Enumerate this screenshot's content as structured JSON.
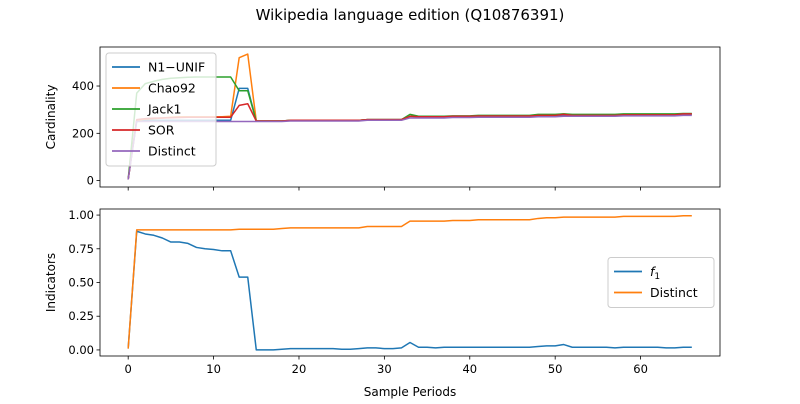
{
  "figure": {
    "title": "Wikipedia language edition (Q10876391)",
    "xlabel": "Sample Periods"
  },
  "chart_data": [
    {
      "type": "line",
      "ylabel": "Cardinality",
      "xlim": [
        -3.3,
        69.3
      ],
      "ylim": [
        -27,
        565
      ],
      "xticks": [
        0,
        10,
        20,
        30,
        40,
        50,
        60
      ],
      "yticks": [
        0,
        200,
        400
      ],
      "show_xtick_labels": false,
      "legend_placement": "upper-left",
      "grid": false,
      "series": [
        {
          "name": "N1−UNIF",
          "color": "#1f77b4",
          "x": [
            0,
            1,
            2,
            3,
            4,
            5,
            6,
            7,
            8,
            9,
            10,
            11,
            12,
            13,
            14,
            15,
            16,
            17,
            18,
            19,
            20,
            21,
            22,
            23,
            24,
            25,
            26,
            27,
            28,
            29,
            30,
            31,
            32,
            33,
            34,
            35,
            36,
            37,
            38,
            39,
            40,
            41,
            42,
            43,
            44,
            45,
            46,
            47,
            48,
            49,
            50,
            51,
            52,
            53,
            54,
            55,
            56,
            57,
            58,
            59,
            60,
            61,
            62,
            63,
            64,
            65,
            66
          ],
          "y": [
            5,
            255,
            255,
            255,
            255,
            255,
            255,
            255,
            255,
            255,
            255,
            255,
            255,
            390,
            390,
            252,
            252,
            252,
            252,
            255,
            255,
            255,
            255,
            255,
            255,
            255,
            255,
            255,
            258,
            258,
            258,
            258,
            258,
            272,
            270,
            270,
            270,
            270,
            272,
            272,
            272,
            273,
            273,
            273,
            273,
            273,
            273,
            273,
            275,
            275,
            275,
            277,
            277,
            277,
            277,
            277,
            277,
            277,
            278,
            278,
            278,
            278,
            278,
            278,
            278,
            280,
            280
          ]
        },
        {
          "name": "Chao92",
          "color": "#ff7f0e",
          "x": [
            0,
            1,
            2,
            3,
            4,
            5,
            6,
            7,
            8,
            9,
            10,
            11,
            12,
            13,
            14,
            15,
            16,
            17,
            18,
            19,
            20,
            21,
            22,
            23,
            24,
            25,
            26,
            27,
            28,
            29,
            30,
            31,
            32,
            33,
            34,
            35,
            36,
            37,
            38,
            39,
            40,
            41,
            42,
            43,
            44,
            45,
            46,
            47,
            48,
            49,
            50,
            51,
            52,
            53,
            54,
            55,
            56,
            57,
            58,
            59,
            60,
            61,
            62,
            63,
            64,
            65,
            66
          ],
          "y": [
            5,
            255,
            260,
            262,
            265,
            268,
            270,
            270,
            270,
            270,
            270,
            270,
            272,
            520,
            535,
            252,
            252,
            252,
            252,
            255,
            255,
            255,
            255,
            255,
            255,
            255,
            255,
            255,
            258,
            258,
            258,
            258,
            258,
            272,
            270,
            270,
            270,
            270,
            272,
            272,
            272,
            273,
            273,
            273,
            273,
            273,
            273,
            273,
            278,
            278,
            278,
            282,
            278,
            278,
            278,
            278,
            278,
            278,
            280,
            280,
            280,
            280,
            280,
            280,
            280,
            282,
            282
          ]
        },
        {
          "name": "Jack1",
          "color": "#2ca02c",
          "x": [
            0,
            1,
            2,
            3,
            4,
            5,
            6,
            7,
            8,
            9,
            10,
            11,
            12,
            13,
            14,
            15,
            16,
            17,
            18,
            19,
            20,
            21,
            22,
            23,
            24,
            25,
            26,
            27,
            28,
            29,
            30,
            31,
            32,
            33,
            34,
            35,
            36,
            37,
            38,
            39,
            40,
            41,
            42,
            43,
            44,
            45,
            46,
            47,
            48,
            49,
            50,
            51,
            52,
            53,
            54,
            55,
            56,
            57,
            58,
            59,
            60,
            61,
            62,
            63,
            64,
            65,
            66
          ],
          "y": [
            5,
            370,
            410,
            420,
            428,
            433,
            435,
            437,
            438,
            438,
            438,
            438,
            438,
            380,
            380,
            252,
            252,
            252,
            252,
            255,
            255,
            255,
            255,
            255,
            255,
            255,
            255,
            255,
            258,
            258,
            258,
            258,
            258,
            280,
            272,
            272,
            272,
            272,
            274,
            274,
            274,
            276,
            276,
            276,
            276,
            276,
            276,
            276,
            280,
            280,
            280,
            282,
            280,
            280,
            280,
            280,
            280,
            280,
            282,
            282,
            282,
            282,
            282,
            282,
            282,
            284,
            284
          ]
        },
        {
          "name": "SOR",
          "color": "#d62728",
          "x": [
            0,
            1,
            2,
            3,
            4,
            5,
            6,
            7,
            8,
            9,
            10,
            11,
            12,
            13,
            14,
            15,
            16,
            17,
            18,
            19,
            20,
            21,
            22,
            23,
            24,
            25,
            26,
            27,
            28,
            29,
            30,
            31,
            32,
            33,
            34,
            35,
            36,
            37,
            38,
            39,
            40,
            41,
            42,
            43,
            44,
            45,
            46,
            47,
            48,
            49,
            50,
            51,
            52,
            53,
            54,
            55,
            56,
            57,
            58,
            59,
            60,
            61,
            62,
            63,
            64,
            65,
            66
          ],
          "y": [
            5,
            258,
            262,
            264,
            265,
            266,
            267,
            268,
            268,
            268,
            268,
            268,
            268,
            318,
            325,
            252,
            252,
            252,
            252,
            255,
            255,
            255,
            255,
            255,
            255,
            255,
            255,
            255,
            258,
            258,
            258,
            258,
            258,
            272,
            270,
            270,
            270,
            270,
            272,
            272,
            272,
            273,
            273,
            273,
            273,
            273,
            273,
            273,
            276,
            276,
            276,
            280,
            276,
            276,
            276,
            276,
            276,
            276,
            278,
            278,
            278,
            278,
            278,
            278,
            278,
            282,
            282
          ]
        },
        {
          "name": "Distinct",
          "color": "#9467bd",
          "x": [
            0,
            1,
            2,
            3,
            4,
            5,
            6,
            7,
            8,
            9,
            10,
            11,
            12,
            13,
            14,
            15,
            16,
            17,
            18,
            19,
            20,
            21,
            22,
            23,
            24,
            25,
            26,
            27,
            28,
            29,
            30,
            31,
            32,
            33,
            34,
            35,
            36,
            37,
            38,
            39,
            40,
            41,
            42,
            43,
            44,
            45,
            46,
            47,
            48,
            49,
            50,
            51,
            52,
            53,
            54,
            55,
            56,
            57,
            58,
            59,
            60,
            61,
            62,
            63,
            64,
            65,
            66
          ],
          "y": [
            5,
            250,
            250,
            250,
            250,
            250,
            250,
            250,
            250,
            250,
            250,
            250,
            250,
            250,
            250,
            250,
            250,
            250,
            250,
            252,
            252,
            252,
            252,
            252,
            252,
            252,
            252,
            252,
            255,
            255,
            255,
            255,
            255,
            265,
            265,
            265,
            265,
            265,
            267,
            267,
            267,
            268,
            268,
            268,
            268,
            268,
            268,
            268,
            270,
            270,
            270,
            272,
            272,
            272,
            272,
            272,
            272,
            272,
            274,
            274,
            274,
            274,
            274,
            274,
            274,
            276,
            276
          ]
        }
      ]
    },
    {
      "type": "line",
      "ylabel": "Indicators",
      "xlim": [
        -3.3,
        69.3
      ],
      "ylim": [
        -0.045,
        1.045
      ],
      "xticks": [
        0,
        10,
        20,
        30,
        40,
        50,
        60
      ],
      "yticks": [
        0.0,
        0.25,
        0.5,
        0.75,
        1.0
      ],
      "ytick_labels": [
        "0.00",
        "0.25",
        "0.50",
        "0.75",
        "1.00"
      ],
      "show_xtick_labels": true,
      "legend_placement": "center-right",
      "grid": false,
      "series": [
        {
          "name": "f1",
          "label_main": "f",
          "label_sub": "1",
          "color": "#1f77b4",
          "x": [
            0,
            1,
            2,
            3,
            4,
            5,
            6,
            7,
            8,
            9,
            10,
            11,
            12,
            13,
            14,
            15,
            16,
            17,
            18,
            19,
            20,
            21,
            22,
            23,
            24,
            25,
            26,
            27,
            28,
            29,
            30,
            31,
            32,
            33,
            34,
            35,
            36,
            37,
            38,
            39,
            40,
            41,
            42,
            43,
            44,
            45,
            46,
            47,
            48,
            49,
            50,
            51,
            52,
            53,
            54,
            55,
            56,
            57,
            58,
            59,
            60,
            61,
            62,
            63,
            64,
            65,
            66
          ],
          "y": [
            0.01,
            0.88,
            0.86,
            0.85,
            0.83,
            0.8,
            0.8,
            0.79,
            0.76,
            0.75,
            0.745,
            0.735,
            0.735,
            0.54,
            0.54,
            0.0,
            0.0,
            0.0,
            0.005,
            0.01,
            0.01,
            0.01,
            0.01,
            0.01,
            0.01,
            0.005,
            0.005,
            0.01,
            0.015,
            0.015,
            0.01,
            0.01,
            0.015,
            0.055,
            0.02,
            0.02,
            0.015,
            0.02,
            0.02,
            0.02,
            0.02,
            0.02,
            0.02,
            0.02,
            0.02,
            0.02,
            0.02,
            0.02,
            0.025,
            0.03,
            0.03,
            0.04,
            0.02,
            0.02,
            0.02,
            0.02,
            0.02,
            0.015,
            0.02,
            0.02,
            0.02,
            0.02,
            0.02,
            0.015,
            0.015,
            0.02,
            0.02
          ]
        },
        {
          "name": "Distinct",
          "color": "#ff7f0e",
          "x": [
            0,
            1,
            2,
            3,
            4,
            5,
            6,
            7,
            8,
            9,
            10,
            11,
            12,
            13,
            14,
            15,
            16,
            17,
            18,
            19,
            20,
            21,
            22,
            23,
            24,
            25,
            26,
            27,
            28,
            29,
            30,
            31,
            32,
            33,
            34,
            35,
            36,
            37,
            38,
            39,
            40,
            41,
            42,
            43,
            44,
            45,
            46,
            47,
            48,
            49,
            50,
            51,
            52,
            53,
            54,
            55,
            56,
            57,
            58,
            59,
            60,
            61,
            62,
            63,
            64,
            65,
            66
          ],
          "y": [
            0.01,
            0.89,
            0.89,
            0.89,
            0.89,
            0.89,
            0.89,
            0.89,
            0.89,
            0.89,
            0.89,
            0.89,
            0.89,
            0.895,
            0.895,
            0.895,
            0.895,
            0.895,
            0.9,
            0.905,
            0.905,
            0.905,
            0.905,
            0.905,
            0.905,
            0.905,
            0.905,
            0.905,
            0.915,
            0.915,
            0.915,
            0.915,
            0.915,
            0.955,
            0.955,
            0.955,
            0.955,
            0.955,
            0.96,
            0.96,
            0.96,
            0.965,
            0.965,
            0.965,
            0.965,
            0.965,
            0.965,
            0.965,
            0.975,
            0.98,
            0.98,
            0.985,
            0.985,
            0.985,
            0.985,
            0.985,
            0.985,
            0.985,
            0.99,
            0.99,
            0.99,
            0.99,
            0.99,
            0.99,
            0.99,
            0.995,
            0.995
          ]
        }
      ]
    }
  ]
}
